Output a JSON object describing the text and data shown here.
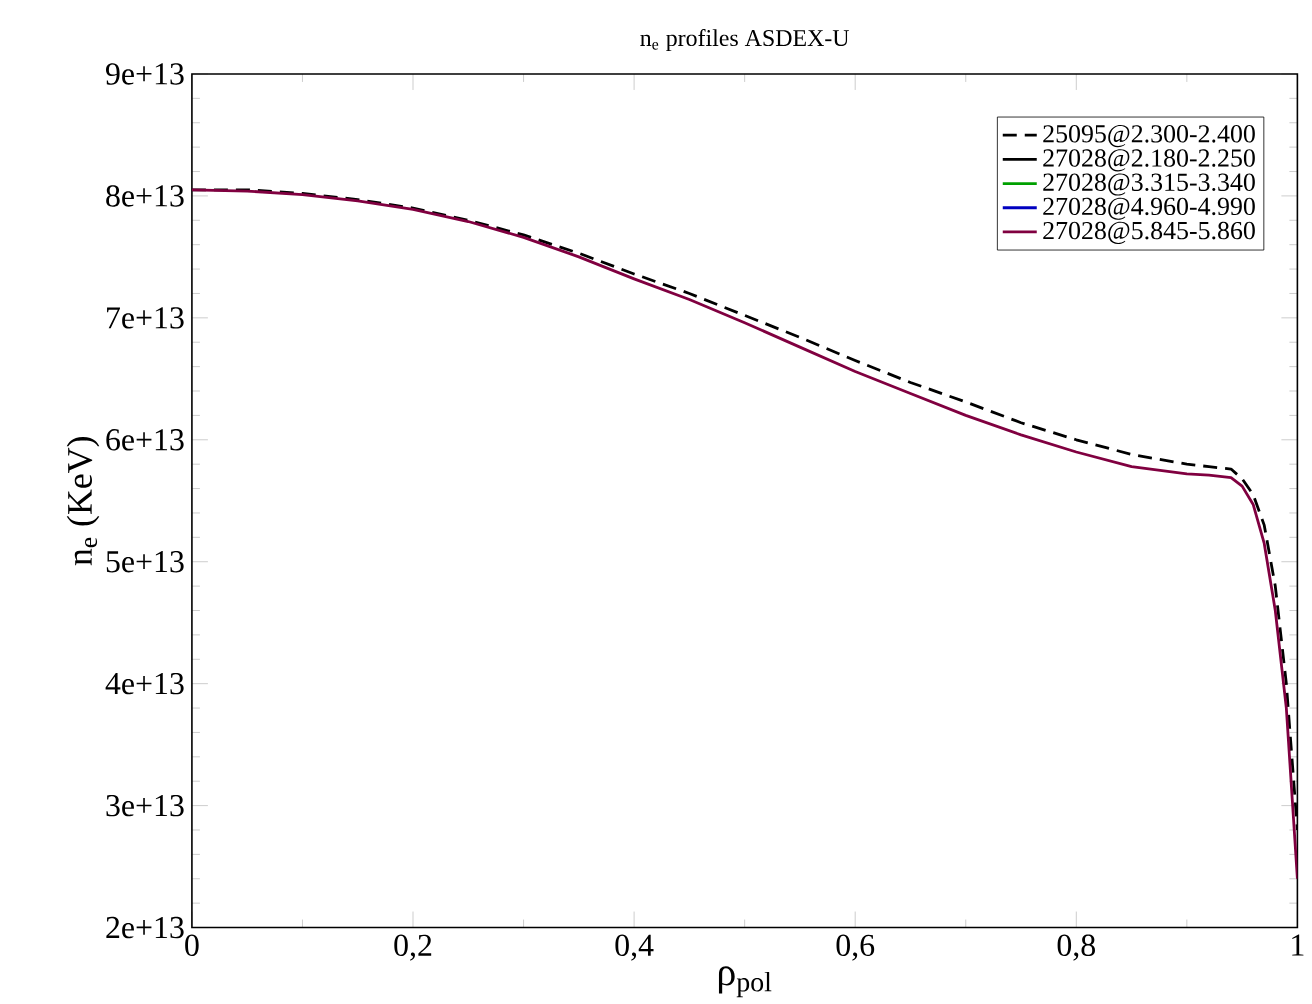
{
  "chart_data": {
    "type": "line",
    "title": "n$_{e}$ profiles ASDEX-U",
    "xlabel": "ρ$_{pol}$",
    "ylabel": "n$_{e}$ (KeV)",
    "x": [
      0,
      0.05,
      0.1,
      0.15,
      0.2,
      0.25,
      0.3,
      0.35,
      0.4,
      0.45,
      0.5,
      0.55,
      0.6,
      0.65,
      0.7,
      0.75,
      0.8,
      0.85,
      0.9,
      0.92,
      0.94,
      0.95,
      0.96,
      0.97,
      0.98,
      0.99,
      1.0
    ],
    "series": [
      {
        "name": "25095@2.300-2.400",
        "color": "#000000",
        "line_style": "dashed",
        "values": [
          80500000000000.0,
          80500000000000.0,
          80200000000000.0,
          79700000000000.0,
          79000000000000.0,
          78000000000000.0,
          76800000000000.0,
          75300000000000.0,
          73600000000000.0,
          72000000000000.0,
          70200000000000.0,
          68400000000000.0,
          66500000000000.0,
          64700000000000.0,
          63100000000000.0,
          61400000000000.0,
          60000000000000.0,
          58800000000000.0,
          58000000000000.0,
          57800000000000.0,
          57600000000000.0,
          56800000000000.0,
          55500000000000.0,
          53000000000000.0,
          48000000000000.0,
          40000000000000.0,
          28000000000000.0
        ]
      },
      {
        "name": "27028@2.180-2.250",
        "color": "#000000",
        "line_style": "solid",
        "values": [
          null,
          null,
          null,
          null,
          null,
          null,
          null,
          null,
          null,
          null,
          null,
          null,
          null,
          null,
          null,
          null,
          null,
          null,
          null,
          null,
          null,
          null,
          null,
          null,
          null,
          null,
          null
        ]
      },
      {
        "name": "27028@3.315-3.340",
        "color": "#00a000",
        "line_style": "solid",
        "values": [
          null,
          null,
          null,
          null,
          null,
          null,
          null,
          null,
          null,
          null,
          null,
          null,
          null,
          null,
          null,
          null,
          null,
          null,
          null,
          null,
          null,
          null,
          null,
          null,
          null,
          null,
          null
        ]
      },
      {
        "name": "27028@4.960-4.990",
        "color": "#0000c0",
        "line_style": "solid",
        "values": [
          null,
          null,
          null,
          null,
          null,
          null,
          null,
          null,
          null,
          null,
          null,
          null,
          null,
          null,
          null,
          null,
          null,
          null,
          null,
          null,
          null,
          null,
          null,
          null,
          null,
          null,
          null
        ]
      },
      {
        "name": "27028@5.845-5.860",
        "color": "#800040",
        "line_style": "solid",
        "values": [
          80500000000000.0,
          80400000000000.0,
          80100000000000.0,
          79600000000000.0,
          78900000000000.0,
          77900000000000.0,
          76600000000000.0,
          75000000000000.0,
          73200000000000.0,
          71500000000000.0,
          69600000000000.0,
          67600000000000.0,
          65600000000000.0,
          63800000000000.0,
          62000000000000.0,
          60400000000000.0,
          59000000000000.0,
          57800000000000.0,
          57200000000000.0,
          57100000000000.0,
          56900000000000.0,
          56200000000000.0,
          54700000000000.0,
          51500000000000.0,
          46000000000000.0,
          38000000000000.0,
          24000000000000.0
        ]
      }
    ],
    "xlim": [
      0,
      1
    ],
    "ylim": [
      20000000000000.0,
      90000000000000.0
    ],
    "xticks": [
      0,
      {
        "value": 0.2,
        "label": "0,2"
      },
      {
        "value": 0.4,
        "label": "0,4"
      },
      {
        "value": 0.6,
        "label": "0,6"
      },
      {
        "value": 0.8,
        "label": "0,8"
      },
      1
    ],
    "yticks": [
      {
        "value": 20000000000000.0,
        "label": "2e+13"
      },
      {
        "value": 30000000000000.0,
        "label": "3e+13"
      },
      {
        "value": 40000000000000.0,
        "label": "4e+13"
      },
      {
        "value": 50000000000000.0,
        "label": "5e+13"
      },
      {
        "value": 60000000000000.0,
        "label": "6e+13"
      },
      {
        "value": 70000000000000.0,
        "label": "7e+13"
      },
      {
        "value": 80000000000000.0,
        "label": "8e+13"
      },
      {
        "value": 90000000000000.0,
        "label": "9e+13"
      }
    ],
    "legend": "top right",
    "grid": false,
    "marker": "none"
  }
}
